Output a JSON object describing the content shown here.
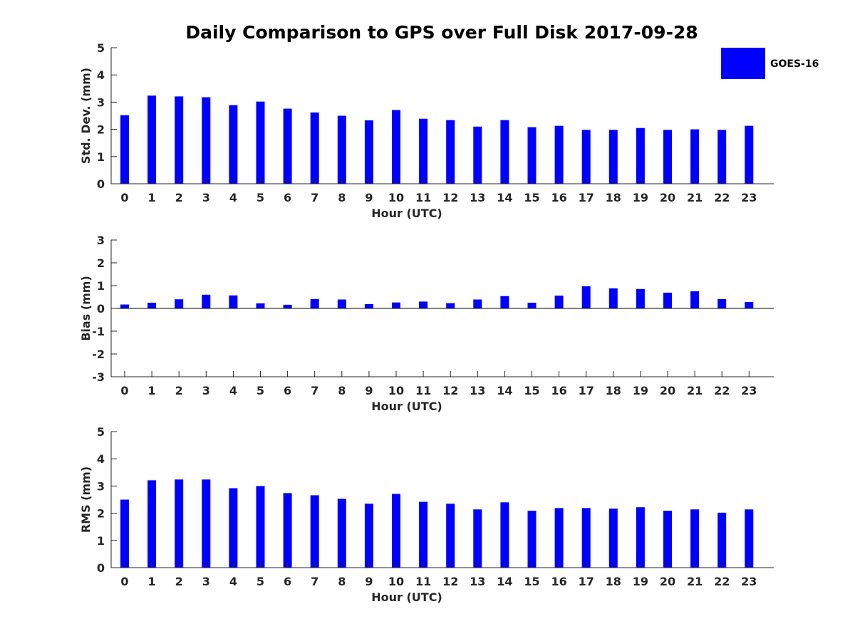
{
  "title": "Daily Comparison to GPS over Full Disk 2017-09-28",
  "legend": {
    "label": "GOES-16",
    "color": "#0000ff"
  },
  "chart_data": [
    {
      "type": "bar",
      "name": "std-dev",
      "categories": [
        "0",
        "1",
        "2",
        "3",
        "4",
        "5",
        "6",
        "7",
        "8",
        "9",
        "10",
        "11",
        "12",
        "13",
        "14",
        "15",
        "16",
        "17",
        "18",
        "19",
        "20",
        "21",
        "22",
        "23"
      ],
      "series": [
        {
          "name": "GOES-16",
          "values": [
            2.52,
            3.24,
            3.21,
            3.18,
            2.89,
            3.02,
            2.76,
            2.62,
            2.5,
            2.33,
            2.71,
            2.39,
            2.34,
            2.1,
            2.34,
            2.08,
            2.13,
            1.98,
            1.98,
            2.05,
            1.98,
            2.0,
            1.98,
            2.13
          ]
        }
      ],
      "xlabel": "Hour (UTC)",
      "ylabel": "Std. Dev. (mm)",
      "ylim": [
        0,
        5
      ],
      "yticks": [
        "0",
        "1",
        "2",
        "3",
        "4",
        "5"
      ]
    },
    {
      "type": "bar",
      "name": "bias",
      "categories": [
        "0",
        "1",
        "2",
        "3",
        "4",
        "5",
        "6",
        "7",
        "8",
        "9",
        "10",
        "11",
        "12",
        "13",
        "14",
        "15",
        "16",
        "17",
        "18",
        "19",
        "20",
        "21",
        "22",
        "23"
      ],
      "series": [
        {
          "name": "GOES-16",
          "values": [
            0.17,
            0.25,
            0.4,
            0.6,
            0.57,
            0.22,
            0.16,
            0.41,
            0.39,
            0.19,
            0.26,
            0.3,
            0.23,
            0.39,
            0.54,
            0.25,
            0.56,
            0.97,
            0.88,
            0.85,
            0.69,
            0.75,
            0.41,
            0.28
          ]
        }
      ],
      "xlabel": "Hour (UTC)",
      "ylabel": "Bias (mm)",
      "ylim": [
        -3,
        3
      ],
      "yticks": [
        "-3",
        "-2",
        "-1",
        "0",
        "1",
        "2",
        "3"
      ]
    },
    {
      "type": "bar",
      "name": "rms",
      "categories": [
        "0",
        "1",
        "2",
        "3",
        "4",
        "5",
        "6",
        "7",
        "8",
        "9",
        "10",
        "11",
        "12",
        "13",
        "14",
        "15",
        "16",
        "17",
        "18",
        "19",
        "20",
        "21",
        "22",
        "23"
      ],
      "series": [
        {
          "name": "GOES-16",
          "values": [
            2.5,
            3.21,
            3.24,
            3.24,
            2.92,
            3.0,
            2.74,
            2.66,
            2.53,
            2.35,
            2.71,
            2.42,
            2.35,
            2.14,
            2.4,
            2.09,
            2.19,
            2.19,
            2.17,
            2.22,
            2.09,
            2.14,
            2.02,
            2.14
          ]
        }
      ],
      "xlabel": "Hour (UTC)",
      "ylabel": "RMS (mm)",
      "ylim": [
        0,
        5
      ],
      "yticks": [
        "0",
        "1",
        "2",
        "3",
        "4",
        "5"
      ]
    }
  ]
}
